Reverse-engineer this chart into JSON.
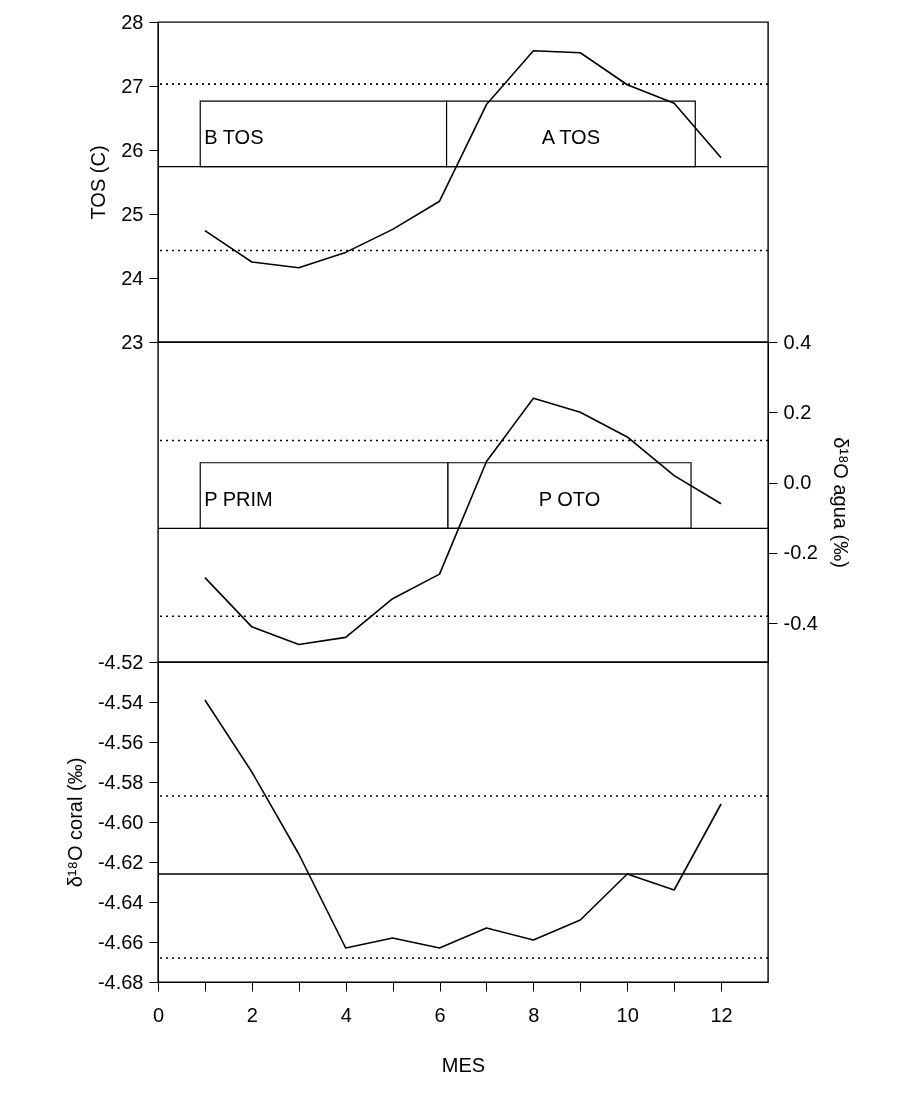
{
  "chart_data": [
    {
      "type": "line",
      "ylabel": "TOS (C)",
      "tick_labels": "y",
      "x": [
        1,
        2,
        3,
        4,
        5,
        6,
        7,
        8,
        9,
        10,
        11,
        12
      ],
      "xlim": [
        0,
        13
      ],
      "ylim": [
        23,
        28
      ],
      "yticks": [
        23,
        24,
        25,
        26,
        27,
        28
      ],
      "series": [
        {
          "color": "#000000",
          "values": [
            24.74,
            24.25,
            24.16,
            24.4,
            24.76,
            25.2,
            26.71,
            27.55,
            27.52,
            27.02,
            26.73,
            25.88
          ]
        }
      ],
      "ref_lines": [
        {
          "axis": "y",
          "value": 27.03,
          "line_style": "dotted"
        },
        {
          "axis": "y",
          "value": 24.43,
          "line_style": "dotted"
        },
        {
          "axis": "y",
          "value": 25.74,
          "line_style": "solid"
        }
      ],
      "bands": [
        {
          "axis": "x",
          "from": 0.9,
          "to": 6.15,
          "label": "B TOS",
          "color": "#ffffff"
        },
        {
          "axis": "x",
          "from": 6.15,
          "to": 11.45,
          "label": "A TOS",
          "color": "#ffffff"
        }
      ]
    },
    {
      "type": "line",
      "y2label": "δ¹⁸O agua (‰)",
      "tick_labels": "y",
      "x": [
        1,
        2,
        3,
        4,
        5,
        6,
        7,
        8,
        9,
        10,
        11,
        12
      ],
      "xlim": [
        0,
        13
      ],
      "y2lim": [
        -0.51,
        0.4
      ],
      "y2ticks": [
        -0.4,
        -0.2,
        {
          "value": 0,
          "label": "0.0"
        },
        0.2,
        0.4
      ],
      "series": [
        {
          "color": "#000000",
          "axis": "y2",
          "values": [
            -0.27,
            -0.41,
            -0.46,
            -0.44,
            -0.33,
            -0.26,
            0.06,
            0.24,
            0.2,
            0.13,
            0.02,
            -0.06
          ]
        }
      ],
      "ref_lines": [
        {
          "axis": "y2",
          "value": 0.12,
          "line_style": "dotted"
        },
        {
          "axis": "y2",
          "value": -0.38,
          "line_style": "dotted"
        },
        {
          "axis": "y2",
          "value": -0.13,
          "line_style": "solid"
        }
      ],
      "bands": [
        {
          "axis": "x",
          "from": 0.9,
          "to": 6.18,
          "label": "P PRIM",
          "color": "#ffffff"
        },
        {
          "axis": "x",
          "from": 6.18,
          "to": 11.36,
          "label": "P OTO",
          "color": "#ffffff"
        }
      ]
    },
    {
      "type": "line",
      "xlabel": "MES",
      "ylabel": "δ¹⁸O coral (‰)",
      "x": [
        1,
        2,
        3,
        4,
        5,
        6,
        7,
        8,
        9,
        10,
        11,
        12
      ],
      "xlim": [
        0,
        13
      ],
      "xticks": [
        0,
        {
          "value": 1,
          "label": null
        },
        2,
        {
          "value": 3,
          "label": null
        },
        4,
        {
          "value": 5,
          "label": null
        },
        6,
        {
          "value": 7,
          "label": null
        },
        8,
        {
          "value": 9,
          "label": null
        },
        10,
        {
          "value": 11,
          "label": null
        },
        12
      ],
      "ylim": [
        -4.68,
        -4.52
      ],
      "yticks": [
        -4.68,
        -4.66,
        -4.64,
        -4.62,
        {
          "value": -4.6,
          "label": "-4.60"
        },
        -4.58,
        -4.56,
        -4.54,
        -4.52
      ],
      "series": [
        {
          "color": "#000000",
          "values": [
            -4.539,
            -4.575,
            -4.616,
            -4.663,
            -4.658,
            -4.663,
            -4.653,
            -4.659,
            -4.649,
            -4.626,
            -4.634,
            -4.591
          ]
        }
      ],
      "ref_lines": [
        {
          "axis": "y",
          "value": -4.587,
          "line_style": "dotted"
        },
        {
          "axis": "y",
          "value": -4.626,
          "line_style": "solid"
        },
        {
          "axis": "y",
          "value": -4.668,
          "line_style": "dotted"
        }
      ]
    }
  ]
}
